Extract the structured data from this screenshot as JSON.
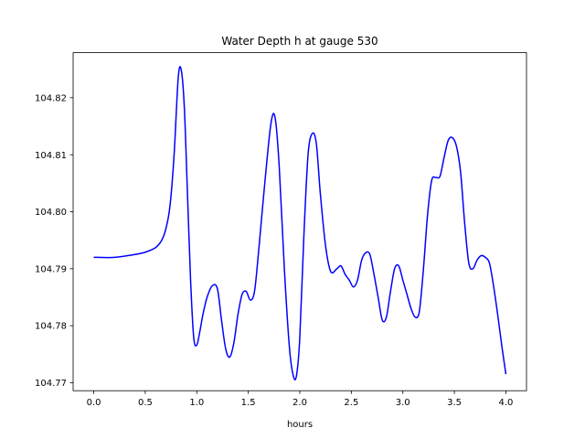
{
  "chart_data": {
    "type": "line",
    "title": "Water Depth h at gauge 530",
    "xlabel": "hours",
    "ylabel": "",
    "xlim": [
      -0.2,
      4.2
    ],
    "ylim": [
      104.7686,
      104.8279
    ],
    "grid": false,
    "legend": "none",
    "x_ticks": [
      0.0,
      0.5,
      1.0,
      1.5,
      2.0,
      2.5,
      3.0,
      3.5,
      4.0
    ],
    "x_tick_labels": [
      "0.0",
      "0.5",
      "1.0",
      "1.5",
      "2.0",
      "2.5",
      "3.0",
      "3.5",
      "4.0"
    ],
    "y_ticks": [
      104.77,
      104.78,
      104.79,
      104.8,
      104.81,
      104.82
    ],
    "y_tick_labels": [
      "104.77",
      "104.78",
      "104.79",
      "104.80",
      "104.81",
      "104.82"
    ],
    "series": [
      {
        "color": "#0000ff",
        "x": [
          0.0,
          0.2,
          0.4,
          0.5,
          0.6,
          0.66,
          0.7,
          0.74,
          0.78,
          0.82,
          0.85,
          0.88,
          0.91,
          0.94,
          0.97,
          1.0,
          1.03,
          1.06,
          1.1,
          1.15,
          1.2,
          1.24,
          1.28,
          1.32,
          1.36,
          1.4,
          1.44,
          1.48,
          1.52,
          1.56,
          1.6,
          1.66,
          1.72,
          1.76,
          1.8,
          1.85,
          1.9,
          1.94,
          1.97,
          2.0,
          2.04,
          2.08,
          2.12,
          2.16,
          2.2,
          2.25,
          2.3,
          2.36,
          2.4,
          2.44,
          2.48,
          2.52,
          2.56,
          2.6,
          2.64,
          2.68,
          2.72,
          2.76,
          2.8,
          2.84,
          2.88,
          2.92,
          2.96,
          3.0,
          3.04,
          3.08,
          3.12,
          3.16,
          3.2,
          3.24,
          3.28,
          3.32,
          3.36,
          3.4,
          3.44,
          3.48,
          3.52,
          3.56,
          3.6,
          3.64,
          3.68,
          3.72,
          3.76,
          3.8,
          3.84,
          3.88,
          3.92,
          3.96,
          4.0
        ],
        "y": [
          104.792,
          104.792,
          104.7925,
          104.7929,
          104.7937,
          104.795,
          104.797,
          104.801,
          104.81,
          104.8235,
          104.8248,
          104.818,
          104.803,
          104.788,
          104.778,
          104.7766,
          104.779,
          104.782,
          104.785,
          104.787,
          104.7865,
          104.781,
          104.776,
          104.7745,
          104.777,
          104.782,
          104.7855,
          104.786,
          104.7845,
          104.786,
          104.793,
          104.805,
          104.8155,
          104.8165,
          104.808,
          104.79,
          104.776,
          104.771,
          104.7715,
          104.778,
          104.796,
          104.81,
          104.8137,
          104.812,
          104.803,
          104.794,
          104.7895,
          104.79,
          104.7905,
          104.789,
          104.788,
          104.7868,
          104.788,
          104.7915,
          104.7928,
          104.7925,
          104.789,
          104.785,
          104.781,
          104.7815,
          104.786,
          104.79,
          104.7905,
          104.788,
          104.7855,
          104.783,
          104.7815,
          104.7825,
          104.79,
          104.7995,
          104.8055,
          104.806,
          104.8062,
          104.8095,
          104.8125,
          104.813,
          104.8115,
          104.807,
          104.798,
          104.791,
          104.79,
          104.7915,
          104.7923,
          104.792,
          104.791,
          104.787,
          104.782,
          104.7765,
          104.7715
        ]
      }
    ]
  }
}
